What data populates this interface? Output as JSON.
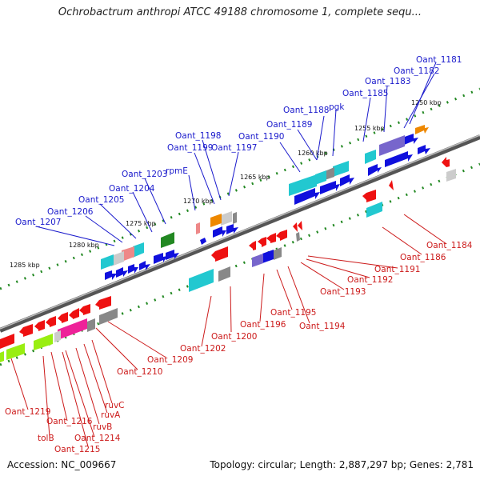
{
  "title": "Ochrobactrum anthropi ATCC 49188 chromosome 1, complete sequ...",
  "footer": {
    "accession": "Accession: NC_009667",
    "summary": "Topology: circular; Length: 2,887,297 bp; Genes: 2,781"
  },
  "position_labels": [
    "1250 kbp",
    "1255 kbp",
    "1260 kbp",
    "1265 kbp",
    "1270 kbp",
    "1275 kbp",
    "1280 kbp",
    "1285 kbp"
  ],
  "genes_top": [
    "Oant_1181",
    "Oant_1182",
    "Oant_1183",
    "Oant_1185",
    "Oant_1188",
    "pgk",
    "Oant_1189",
    "Oant_1190",
    "Oant_1197",
    "Oant_1198",
    "Oant_1199",
    "rpmE",
    "Oant_1203",
    "Oant_1204",
    "Oant_1205",
    "Oant_1206",
    "Oant_1207"
  ],
  "genes_bottom": [
    "Oant_1184",
    "Oant_1186",
    "Oant_1191",
    "Oant_1192",
    "Oant_1193",
    "Oant_1194",
    "Oant_1195",
    "Oant_1196",
    "Oant_1200",
    "Oant_1202",
    "Oant_1209",
    "Oant_1210",
    "ruvC",
    "ruvA",
    "ruvB",
    "Oant_1214",
    "Oant_1215",
    "Oant_1216",
    "tolB",
    "Oant_1219"
  ],
  "colors": {
    "forward": "#1010dd",
    "reverse": "#ee1111",
    "cyan": "#22c8d0",
    "purple": "#7766cc",
    "orange": "#ee8800",
    "green": "#228822",
    "pink": "#ee2299",
    "lime": "#99ee11"
  }
}
